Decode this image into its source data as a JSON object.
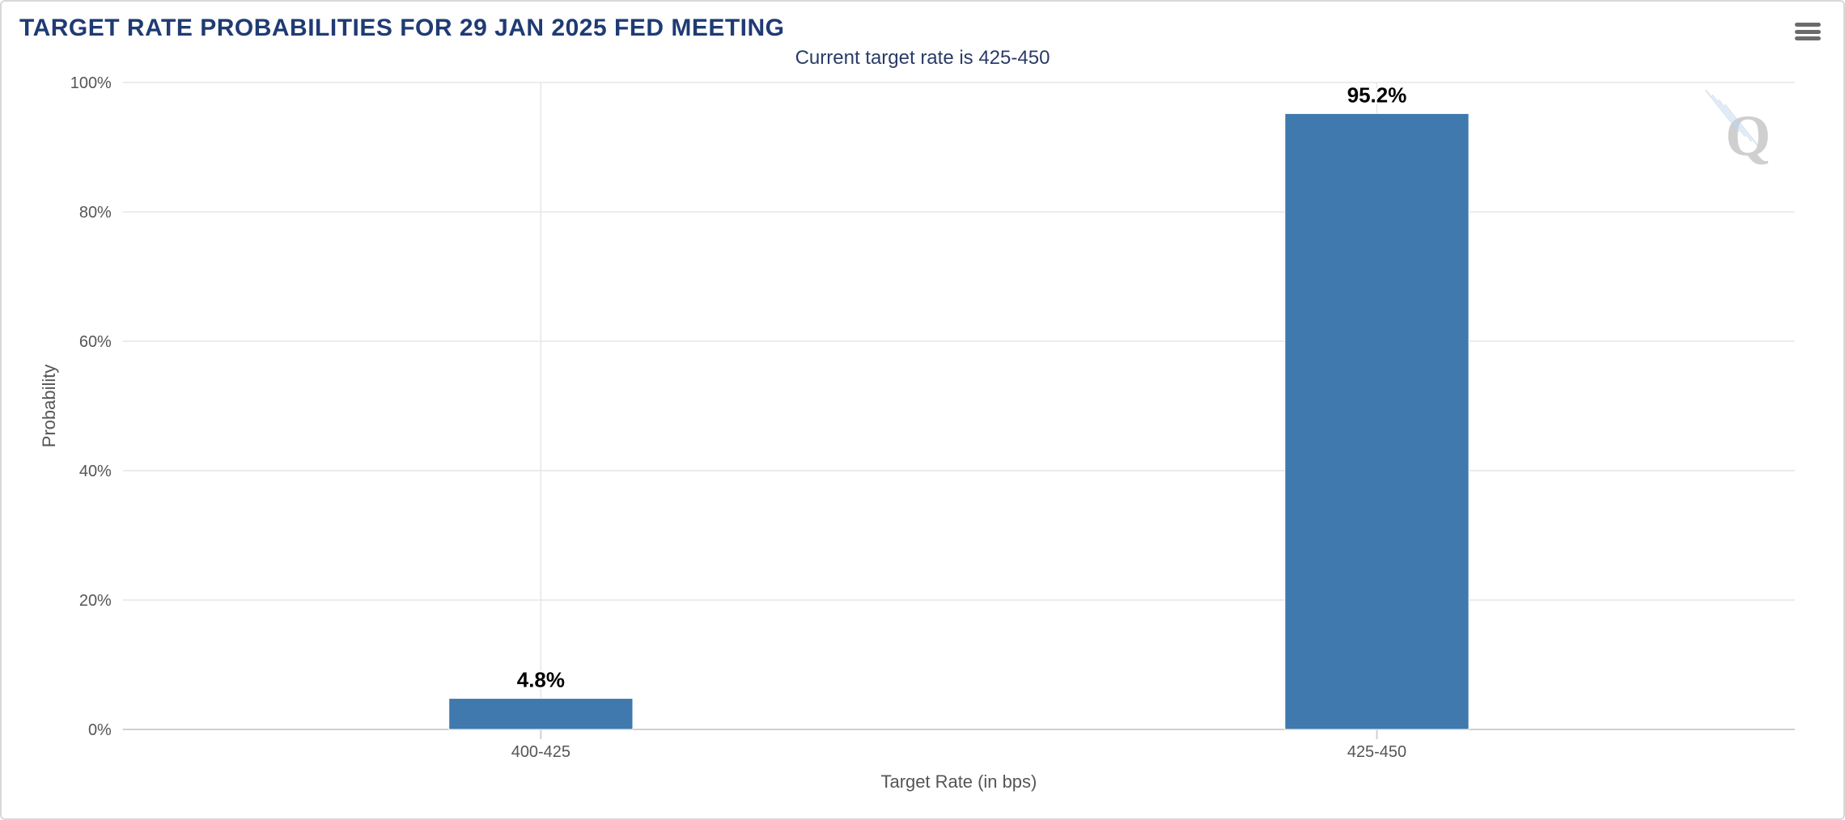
{
  "chart": {
    "type": "bar",
    "title": "TARGET RATE PROBABILITIES FOR 29 JAN 2025 FED MEETING",
    "subtitle": "Current target rate is 425-450",
    "x_axis_title": "Target Rate (in bps)",
    "y_axis_title": "Probability",
    "categories": [
      "400-425",
      "425-450"
    ],
    "values": [
      4.8,
      95.2
    ],
    "value_labels": [
      "4.8%",
      "95.2%"
    ],
    "bar_color": "#3f79ad",
    "bar_border_color": "#ffffff",
    "ylim": [
      0,
      100
    ],
    "ytick_step": 20,
    "y_tick_labels": [
      "0%",
      "20%",
      "40%",
      "60%",
      "80%",
      "100%"
    ],
    "grid_color": "#e6e6e6",
    "axis_line_color": "#d0d0d0",
    "background_color": "#ffffff",
    "title_color": "#1f3b73",
    "subtitle_color": "#2a3b66",
    "axis_text_color": "#555555",
    "title_fontsize": 30,
    "subtitle_fontsize": 24,
    "axis_label_fontsize": 20,
    "axis_title_fontsize": 22,
    "value_label_fontsize": 26,
    "bar_width_ratio": 0.22,
    "watermark_text": "Q",
    "watermark_color": "#cfcfcf"
  },
  "menu": {
    "name": "chart-context-menu"
  }
}
